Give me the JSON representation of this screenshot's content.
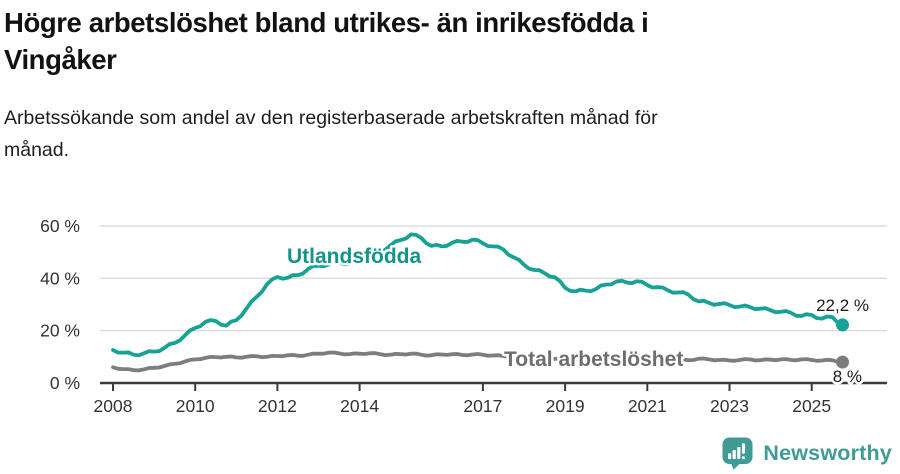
{
  "header": {
    "title_line1": "Högre arbetslöshet bland utrikes- än inrikesfödda i",
    "title_line2": "Vingåker",
    "subtitle_line1": "Arbetssökande som andel av den registerbaserade arbetskraften månad för",
    "subtitle_line2": "månad."
  },
  "colors": {
    "teal": "#18A195",
    "gray_line": "#7D7D7D",
    "gray_label": "#6E6E6E",
    "axis": "#3A3A3A",
    "grid": "#DBDBDB",
    "logo": "#3F9B94"
  },
  "chart_data": {
    "type": "line",
    "title": "Högre arbetslöshet bland utrikes- än inrikesfödda i Vingåker",
    "subtitle": "Arbetssökande som andel av den registerbaserade arbetskraften månad för månad.",
    "unit": "%",
    "xlim": [
      2007.7,
      2026.8
    ],
    "ylim": [
      0,
      64
    ],
    "grid": "horizontal",
    "x_axis": {
      "ticks": [
        2008,
        2010,
        2012,
        2014,
        2017,
        2019,
        2021,
        2023,
        2025
      ]
    },
    "y_axis": {
      "ticks": [
        {
          "value": 0,
          "label": "0 %"
        },
        {
          "value": 20,
          "label": "20 %"
        },
        {
          "value": 40,
          "label": "40 %"
        },
        {
          "value": 60,
          "label": "60 %"
        }
      ]
    },
    "x": [
      2008.0,
      2008.25,
      2008.5,
      2008.75,
      2009.0,
      2009.25,
      2009.5,
      2009.75,
      2010.0,
      2010.25,
      2010.5,
      2010.75,
      2011.0,
      2011.25,
      2011.5,
      2011.75,
      2012.0,
      2012.25,
      2012.5,
      2012.75,
      2013.0,
      2013.25,
      2013.5,
      2013.75,
      2014.0,
      2014.25,
      2014.5,
      2014.75,
      2015.0,
      2015.25,
      2015.5,
      2015.75,
      2016.0,
      2016.25,
      2016.5,
      2016.75,
      2017.0,
      2017.25,
      2017.5,
      2017.75,
      2018.0,
      2018.25,
      2018.5,
      2018.75,
      2019.0,
      2019.25,
      2019.5,
      2019.75,
      2020.0,
      2020.25,
      2020.5,
      2020.75,
      2021.0,
      2021.25,
      2021.5,
      2021.75,
      2022.0,
      2022.25,
      2022.5,
      2022.75,
      2023.0,
      2023.25,
      2023.5,
      2023.75,
      2024.0,
      2024.25,
      2024.5,
      2024.75,
      2025.0,
      2025.25,
      2025.5,
      2025.75
    ],
    "series": [
      {
        "name": "Utlandsfödda",
        "color": "#18A195",
        "label_color": "#149488",
        "end_label": "22,2 %",
        "end_value": 22.2,
        "values": [
          12.6,
          11.6,
          10.8,
          11.3,
          12.0,
          13.4,
          15.3,
          18.2,
          21.0,
          23.4,
          23.7,
          21.9,
          24.0,
          28.5,
          33.0,
          37.8,
          40.5,
          40.2,
          41.2,
          43.6,
          44.8,
          45.3,
          46.2,
          45.6,
          46.6,
          48.0,
          50.2,
          52.6,
          54.6,
          56.8,
          55.4,
          52.4,
          52.2,
          53.6,
          54.0,
          54.8,
          53.4,
          52.2,
          51.0,
          48.0,
          45.2,
          43.2,
          42.0,
          40.4,
          36.4,
          35.0,
          35.3,
          35.9,
          37.6,
          38.8,
          38.4,
          38.9,
          37.4,
          36.6,
          35.4,
          34.6,
          33.8,
          31.2,
          30.6,
          30.2,
          29.8,
          29.2,
          29.0,
          28.4,
          27.8,
          27.2,
          26.8,
          25.6,
          26.0,
          24.6,
          25.2,
          22.2
        ]
      },
      {
        "name": "Total arbetslöshet",
        "color": "#7D7D7D",
        "label_color": "#6E6E6E",
        "end_label": "8 %",
        "end_value": 8.0,
        "values": [
          6.0,
          5.3,
          4.9,
          5.2,
          5.8,
          6.5,
          7.3,
          8.2,
          9.0,
          9.6,
          9.9,
          10.0,
          9.8,
          10.0,
          10.2,
          10.0,
          10.3,
          10.6,
          10.4,
          10.8,
          11.2,
          11.6,
          11.3,
          11.0,
          11.2,
          11.4,
          11.0,
          10.8,
          11.0,
          11.2,
          10.8,
          10.6,
          10.9,
          11.0,
          10.7,
          10.9,
          10.8,
          10.5,
          10.3,
          10.0,
          9.8,
          9.6,
          9.4,
          9.2,
          9.0,
          9.1,
          9.3,
          9.5,
          9.8,
          10.4,
          10.6,
          10.3,
          10.0,
          9.6,
          9.2,
          8.9,
          8.7,
          9.3,
          9.0,
          8.8,
          8.6,
          8.8,
          9.0,
          8.7,
          8.9,
          9.0,
          8.8,
          9.0,
          8.8,
          8.6,
          8.7,
          8.0
        ]
      }
    ]
  },
  "footer": {
    "brand": "Newsworthy"
  }
}
